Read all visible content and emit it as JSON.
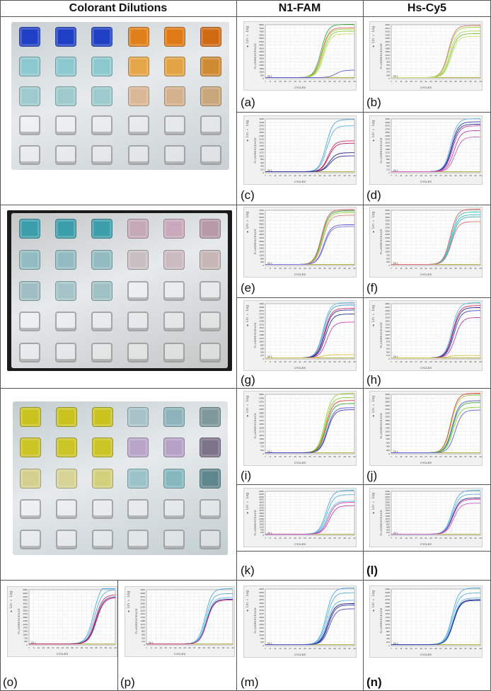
{
  "headers": {
    "col1": "Colorant Dilutions",
    "col2": "N1-FAM",
    "col3": "Hs-Cy5"
  },
  "photos": [
    {
      "name": "plate-blue-orange",
      "background": "#c9cfd3",
      "rows": [
        [
          "#1f3fc4",
          "#1f3fc4",
          "#1f3fc4",
          "#e0801a",
          "#e07a16",
          "#cf6a12"
        ],
        [
          "#8cc9cf",
          "#8cc9cf",
          "#8cc9cf",
          "#e4a648",
          "#e2a444",
          "#cf8a34"
        ],
        [
          "#9dcacd",
          "#9dcacd",
          "#9dcacd",
          "#d9b896",
          "#d4b08d",
          "#c8a67c"
        ],
        [
          "empty",
          "empty",
          "empty",
          "empty",
          "empty",
          "empty"
        ],
        [
          "empty",
          "empty",
          "empty",
          "empty",
          "empty",
          "empty"
        ]
      ]
    },
    {
      "name": "plate-teal-pink",
      "background": "#c4c6c6",
      "rows": [
        [
          "#3c9eab",
          "#3c9eab",
          "#3c9eab",
          "#c6a9b6",
          "#c9a9bb",
          "#b69aa5"
        ],
        [
          "#92bcc2",
          "#92bcc2",
          "#92bcc2",
          "#c8bfc2",
          "#cbbac0",
          "#c6b6b6"
        ],
        [
          "#9fbdc2",
          "#a3c3c7",
          "#9fc0c4",
          "empty",
          "empty",
          "empty"
        ],
        [
          "empty",
          "empty",
          "empty",
          "empty",
          "empty",
          "empty"
        ],
        [
          "empty",
          "empty",
          "empty",
          "empty",
          "empty",
          "empty"
        ]
      ]
    },
    {
      "name": "plate-yellow-purple",
      "background": "#c3cdd0",
      "rows": [
        [
          "#c9c21f",
          "#c9c21f",
          "#c9c21f",
          "#a7c3c9",
          "#8db4bb",
          "#7e989c"
        ],
        [
          "#cbc425",
          "#cbc425",
          "#cbc425",
          "#b8a5c8",
          "#b6a2c7",
          "#7d7389"
        ],
        [
          "#d3d08f",
          "#d8d497",
          "#d3d07e",
          "#9ac2c8",
          "#86b8bf",
          "#5e878d"
        ],
        [
          "empty",
          "empty",
          "empty",
          "empty",
          "empty",
          "empty"
        ],
        [
          "empty",
          "empty",
          "empty",
          "empty",
          "empty",
          "empty"
        ]
      ]
    }
  ],
  "chart_common": {
    "side_text": "● Lin  ○ Log",
    "ylabel": "FLUORESCENCE",
    "xlabel": "CYCLES",
    "x_ticks": [
      "7",
      "9",
      "11",
      "13",
      "15",
      "17",
      "19",
      "21",
      "23",
      "25",
      "27",
      "29",
      "31",
      "33",
      "35",
      "37",
      "39",
      "41",
      "43"
    ],
    "threshold_label": "Ch 1"
  },
  "chart_data": [
    {
      "id": "a",
      "label": "(a)",
      "type": "line",
      "channel": "N1-FAM",
      "xlabel": "CYCLES",
      "ylabel": "FLUORESCENCE",
      "xlim": [
        7,
        43
      ],
      "ylim": [
        0,
        8000
      ],
      "series": [
        {
          "color": "#3daa3d",
          "ct": 29.5,
          "plateau": 7900
        },
        {
          "color": "#e06060",
          "ct": 29.8,
          "plateau": 7400
        },
        {
          "color": "#9cd43a",
          "ct": 30.0,
          "plateau": 7200
        },
        {
          "color": "#8bd13a",
          "ct": 30.3,
          "plateau": 6900
        },
        {
          "color": "#c0e060",
          "ct": 30.6,
          "plateau": 6500
        },
        {
          "color": "#5a5ad6",
          "ct": 35.5,
          "plateau": 1100
        }
      ]
    },
    {
      "id": "b",
      "label": "(b)",
      "type": "line",
      "channel": "Hs-Cy5",
      "xlabel": "CYCLES",
      "ylabel": "FLUORESCENCE",
      "xlim": [
        7,
        43
      ],
      "ylim": [
        0,
        3000
      ],
      "series": [
        {
          "color": "#e07070",
          "ct": 30.0,
          "plateau": 2900
        },
        {
          "color": "#9cd43a",
          "ct": 30.2,
          "plateau": 2800
        },
        {
          "color": "#b0d860",
          "ct": 30.6,
          "plateau": 2600
        },
        {
          "color": "#7cc040",
          "ct": 30.9,
          "plateau": 2450
        },
        {
          "color": "#c8e070",
          "ct": 31.2,
          "plateau": 2300
        }
      ]
    },
    {
      "id": "c",
      "label": "(c)",
      "type": "line",
      "channel": "N1-FAM",
      "xlabel": "CYCLES",
      "ylabel": "FLUORESCENCE",
      "xlim": [
        7,
        43
      ],
      "ylim": [
        0,
        3400
      ],
      "series": [
        {
          "color": "#4aa8e0",
          "ct": 31.5,
          "plateau": 3300
        },
        {
          "color": "#5ab0e0",
          "ct": 31.8,
          "plateau": 2900
        },
        {
          "color": "#d0306a",
          "ct": 32.3,
          "plateau": 1950
        },
        {
          "color": "#c02060",
          "ct": 32.5,
          "plateau": 1800
        },
        {
          "color": "#20208a",
          "ct": 32.8,
          "plateau": 1200
        },
        {
          "color": "#3030a0",
          "ct": 33.0,
          "plateau": 1000
        }
      ]
    },
    {
      "id": "d",
      "label": "(d)",
      "type": "line",
      "channel": "Hs-Cy5",
      "xlabel": "CYCLES",
      "ylabel": "FLUORESCENCE",
      "xlim": [
        7,
        43
      ],
      "ylim": [
        0,
        3400
      ],
      "series": [
        {
          "color": "#60b8e8",
          "ct": 31.0,
          "plateau": 3350
        },
        {
          "color": "#2040b0",
          "ct": 31.3,
          "plateau": 3150
        },
        {
          "color": "#2a2a90",
          "ct": 31.5,
          "plateau": 3000
        },
        {
          "color": "#d040a0",
          "ct": 31.8,
          "plateau": 2900
        },
        {
          "color": "#c040b0",
          "ct": 32.3,
          "plateau": 2600
        },
        {
          "color": "#d060c0",
          "ct": 32.8,
          "plateau": 2200
        }
      ]
    },
    {
      "id": "e",
      "label": "(e)",
      "type": "line",
      "channel": "N1-FAM",
      "xlabel": "CYCLES",
      "ylabel": "FLUORESCENCE",
      "xlim": [
        7,
        43
      ],
      "ylim": [
        0,
        6400
      ],
      "series": [
        {
          "color": "#e06060",
          "ct": 29.6,
          "plateau": 6350
        },
        {
          "color": "#3daa3d",
          "ct": 29.8,
          "plateau": 6200
        },
        {
          "color": "#9cd43a",
          "ct": 30.0,
          "plateau": 6000
        },
        {
          "color": "#e08080",
          "ct": 30.2,
          "plateau": 5700
        },
        {
          "color": "#5a5ad6",
          "ct": 30.6,
          "plateau": 4600
        },
        {
          "color": "#7a7ae0",
          "ct": 30.8,
          "plateau": 4400
        }
      ]
    },
    {
      "id": "f",
      "label": "(f)",
      "type": "line",
      "channel": "Hs-Cy5",
      "xlabel": "CYCLES",
      "ylabel": "FLUORESCENCE",
      "xlim": [
        7,
        43
      ],
      "ylim": [
        0,
        4000
      ],
      "series": [
        {
          "color": "#e06060",
          "ct": 30.8,
          "plateau": 4000
        },
        {
          "color": "#30c0c8",
          "ct": 31.0,
          "plateau": 3800
        },
        {
          "color": "#40b8c0",
          "ct": 31.2,
          "plateau": 3600
        },
        {
          "color": "#50a8b8",
          "ct": 31.4,
          "plateau": 3450
        },
        {
          "color": "#e07070",
          "ct": 31.3,
          "plateau": 3100
        }
      ]
    },
    {
      "id": "g",
      "label": "(g)",
      "type": "line",
      "channel": "N1-FAM",
      "xlabel": "CYCLES",
      "ylabel": "FLUORESCENCE",
      "xlim": [
        7,
        43
      ],
      "ylim": [
        0,
        3400
      ],
      "series": [
        {
          "color": "#60b8e8",
          "ct": 30.3,
          "plateau": 3400
        },
        {
          "color": "#4a9ad8",
          "ct": 30.5,
          "plateau": 3250
        },
        {
          "color": "#d0306a",
          "ct": 30.8,
          "plateau": 3050
        },
        {
          "color": "#3030a0",
          "ct": 31.0,
          "plateau": 2950
        },
        {
          "color": "#2a2a90",
          "ct": 31.3,
          "plateau": 2700
        },
        {
          "color": "#d040b0",
          "ct": 31.8,
          "plateau": 2200
        },
        {
          "color": "#d8c040",
          "ct": 30.0,
          "plateau": 200
        }
      ]
    },
    {
      "id": "h",
      "label": "(h)",
      "type": "line",
      "channel": "Hs-Cy5",
      "xlabel": "CYCLES",
      "ylabel": "FLUORESCENCE",
      "xlim": [
        7,
        43
      ],
      "ylim": [
        0,
        2800
      ],
      "series": [
        {
          "color": "#60b8e8",
          "ct": 31.5,
          "plateau": 2800
        },
        {
          "color": "#d0306a",
          "ct": 31.8,
          "plateau": 2650
        },
        {
          "color": "#2a2a90",
          "ct": 32.0,
          "plateau": 2550
        },
        {
          "color": "#4040c0",
          "ct": 32.3,
          "plateau": 2400
        },
        {
          "color": "#c040b0",
          "ct": 32.8,
          "plateau": 2050
        },
        {
          "color": "#d8c040",
          "ct": 30.0,
          "plateau": 120
        }
      ]
    },
    {
      "id": "i",
      "label": "(i)",
      "type": "line",
      "channel": "N1-FAM",
      "xlabel": "CYCLES",
      "ylabel": "FLUORESCENCE",
      "xlim": [
        7,
        43
      ],
      "ylim": [
        0,
        5800
      ],
      "series": [
        {
          "color": "#9cd43a",
          "ct": 31.0,
          "plateau": 5800
        },
        {
          "color": "#8bd13a",
          "ct": 31.2,
          "plateau": 5400
        },
        {
          "color": "#e04040",
          "ct": 31.4,
          "plateau": 5100
        },
        {
          "color": "#3daa3d",
          "ct": 31.6,
          "plateau": 4800
        },
        {
          "color": "#5050d0",
          "ct": 31.9,
          "plateau": 4400
        },
        {
          "color": "#4040c0",
          "ct": 32.1,
          "plateau": 4200
        }
      ]
    },
    {
      "id": "j",
      "label": "(j)",
      "type": "line",
      "channel": "Hs-Cy5",
      "xlabel": "CYCLES",
      "ylabel": "FLUORESCENCE",
      "xlim": [
        7,
        43
      ],
      "ylim": [
        0,
        3200
      ],
      "series": [
        {
          "color": "#e04040",
          "ct": 31.0,
          "plateau": 3200
        },
        {
          "color": "#9cd43a",
          "ct": 31.2,
          "plateau": 3100
        },
        {
          "color": "#5050d0",
          "ct": 31.6,
          "plateau": 2800
        },
        {
          "color": "#3daa3d",
          "ct": 31.8,
          "plateau": 2700
        },
        {
          "color": "#8bd13a",
          "ct": 32.0,
          "plateau": 2450
        },
        {
          "color": "#6060d8",
          "ct": 32.8,
          "plateau": 2300
        }
      ]
    },
    {
      "id": "k",
      "label": "(k)",
      "type": "line",
      "channel": "N1-FAM",
      "xlabel": "CYCLES",
      "ylabel": "FLUORESCENCE",
      "xlim": [
        7,
        43
      ],
      "ylim": [
        0,
        6000
      ],
      "series": [
        {
          "color": "#4aa8e0",
          "ct": 31.5,
          "plateau": 6000
        },
        {
          "color": "#5ab0e0",
          "ct": 31.8,
          "plateau": 5400
        },
        {
          "color": "#60b8e8",
          "ct": 32.0,
          "plateau": 4500
        },
        {
          "color": "#d040b0",
          "ct": 32.4,
          "plateau": 4350
        },
        {
          "color": "#c040b0",
          "ct": 32.8,
          "plateau": 3900
        }
      ]
    },
    {
      "id": "l",
      "label": "(l)",
      "type": "line",
      "channel": "Hs-Cy5",
      "xlabel": "CYCLES",
      "ylabel": "FLUORESCENCE",
      "xlim": [
        7,
        43
      ],
      "ylim": [
        0,
        3400
      ],
      "series": [
        {
          "color": "#4aa8e0",
          "ct": 31.5,
          "plateau": 3400
        },
        {
          "color": "#5ab0e0",
          "ct": 31.7,
          "plateau": 3100
        },
        {
          "color": "#2a2a90",
          "ct": 31.8,
          "plateau": 2800
        },
        {
          "color": "#d040b0",
          "ct": 31.9,
          "plateau": 2700
        },
        {
          "color": "#c060c0",
          "ct": 32.2,
          "plateau": 2400
        }
      ]
    },
    {
      "id": "m",
      "label": "(m)",
      "type": "line",
      "channel": "N1-FAM",
      "xlabel": "CYCLES",
      "ylabel": "FLUORESCENCE",
      "xlim": [
        7,
        43
      ],
      "ylim": [
        0,
        6000
      ],
      "series": [
        {
          "color": "#4aa8e0",
          "ct": 31.5,
          "plateau": 6000
        },
        {
          "color": "#5ab0e0",
          "ct": 31.8,
          "plateau": 5500
        },
        {
          "color": "#60b8e8",
          "ct": 32.0,
          "plateau": 4700
        },
        {
          "color": "#20208a",
          "ct": 32.2,
          "plateau": 4350
        },
        {
          "color": "#3030a0",
          "ct": 32.5,
          "plateau": 4200
        },
        {
          "color": "#5050c0",
          "ct": 32.8,
          "plateau": 3800
        }
      ]
    },
    {
      "id": "n",
      "label": "(n)",
      "type": "line",
      "channel": "Hs-Cy5",
      "xlabel": "CYCLES",
      "ylabel": "FLUORESCENCE",
      "xlim": [
        7,
        43
      ],
      "ylim": [
        0,
        3400
      ],
      "series": [
        {
          "color": "#4aa8e0",
          "ct": 31.5,
          "plateau": 3400
        },
        {
          "color": "#5ab0e0",
          "ct": 31.7,
          "plateau": 3100
        },
        {
          "color": "#60b8e8",
          "ct": 31.9,
          "plateau": 2800
        },
        {
          "color": "#20208a",
          "ct": 32.0,
          "plateau": 2700
        },
        {
          "color": "#2040b0",
          "ct": 32.1,
          "plateau": 2650
        }
      ]
    },
    {
      "id": "o",
      "label": "(o)",
      "type": "line",
      "channel": "N1-FAM",
      "xlabel": "CYCLES",
      "ylabel": "FLUORESCENCE",
      "xlim": [
        7,
        39
      ],
      "ylim": [
        0,
        5600
      ],
      "series": [
        {
          "color": "#4aa8e0",
          "ct": 31.0,
          "plateau": 6200
        },
        {
          "color": "#5ab0e0",
          "ct": 31.3,
          "plateau": 5500
        },
        {
          "color": "#d0306a",
          "ct": 31.6,
          "plateau": 5000
        },
        {
          "color": "#3030a0",
          "ct": 31.8,
          "plateau": 4800
        },
        {
          "color": "#c02060",
          "ct": 32.0,
          "plateau": 4700
        }
      ]
    },
    {
      "id": "p",
      "label": "(p)",
      "type": "line",
      "channel": "Hs-Cy5",
      "xlabel": "CYCLES",
      "ylabel": "FLUORESCENCE",
      "xlim": [
        7,
        43
      ],
      "ylim": [
        0,
        3400
      ],
      "series": [
        {
          "color": "#4aa8e0",
          "ct": 31.5,
          "plateau": 3400
        },
        {
          "color": "#5ab0e0",
          "ct": 31.8,
          "plateau": 3100
        },
        {
          "color": "#60b8e8",
          "ct": 32.0,
          "plateau": 2850
        },
        {
          "color": "#3030a0",
          "ct": 32.1,
          "plateau": 2750
        },
        {
          "color": "#d0306a",
          "ct": 32.2,
          "plateau": 2700
        }
      ]
    }
  ]
}
